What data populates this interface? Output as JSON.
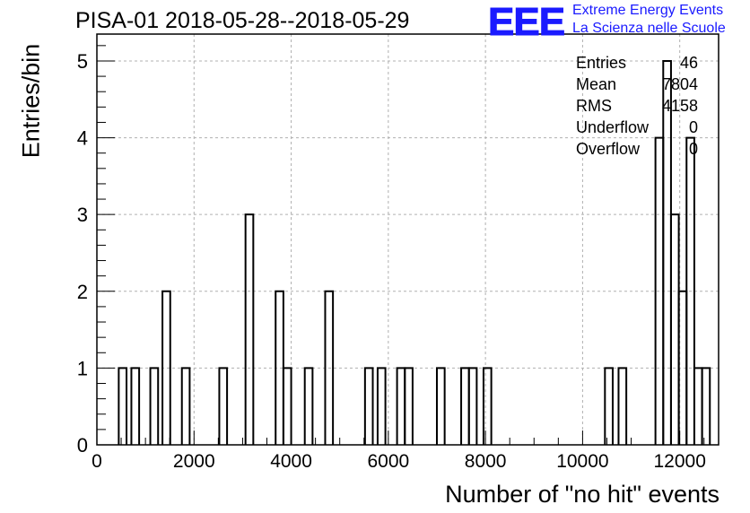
{
  "title": "PISA-01 2018-05-28--2018-05-29",
  "logo": {
    "mark": "EEE",
    "line1": "Extreme Energy Events",
    "line2": "La Scienza nelle Scuole",
    "color": "#1a1aff"
  },
  "stats": [
    {
      "label": "Entries",
      "value": "46"
    },
    {
      "label": "Mean",
      "value": "7804"
    },
    {
      "label": "RMS",
      "value": "4158"
    },
    {
      "label": "Underflow",
      "value": "0"
    },
    {
      "label": "Overflow",
      "value": "0"
    }
  ],
  "chart_data": {
    "type": "bar",
    "title": "PISA-01 2018-05-28--2018-05-29",
    "xlabel": "Number of \"no hit\" events",
    "ylabel": "Entries/bin",
    "xlim": [
      0,
      12800
    ],
    "ylim": [
      0,
      5.35
    ],
    "x_ticks": [
      0,
      2000,
      4000,
      6000,
      8000,
      10000,
      12000
    ],
    "y_ticks": [
      0,
      1,
      2,
      3,
      4,
      5
    ],
    "grid": true,
    "bin_width": 160,
    "bins": [
      {
        "x0": 450,
        "y": 1
      },
      {
        "x0": 710,
        "y": 1
      },
      {
        "x0": 1100,
        "y": 1
      },
      {
        "x0": 1350,
        "y": 2
      },
      {
        "x0": 1750,
        "y": 1
      },
      {
        "x0": 2520,
        "y": 1
      },
      {
        "x0": 3060,
        "y": 3
      },
      {
        "x0": 3680,
        "y": 2
      },
      {
        "x0": 3840,
        "y": 1
      },
      {
        "x0": 4280,
        "y": 1
      },
      {
        "x0": 4700,
        "y": 2
      },
      {
        "x0": 5520,
        "y": 1
      },
      {
        "x0": 5780,
        "y": 1
      },
      {
        "x0": 6180,
        "y": 1
      },
      {
        "x0": 6340,
        "y": 1
      },
      {
        "x0": 7000,
        "y": 1
      },
      {
        "x0": 7500,
        "y": 1
      },
      {
        "x0": 7660,
        "y": 1
      },
      {
        "x0": 7960,
        "y": 1
      },
      {
        "x0": 10460,
        "y": 1
      },
      {
        "x0": 10740,
        "y": 1
      },
      {
        "x0": 11500,
        "y": 4
      },
      {
        "x0": 11660,
        "y": 5
      },
      {
        "x0": 11820,
        "y": 3
      },
      {
        "x0": 11980,
        "y": 2
      },
      {
        "x0": 12140,
        "y": 4
      },
      {
        "x0": 12300,
        "y": 1
      },
      {
        "x0": 12460,
        "y": 1
      }
    ]
  }
}
